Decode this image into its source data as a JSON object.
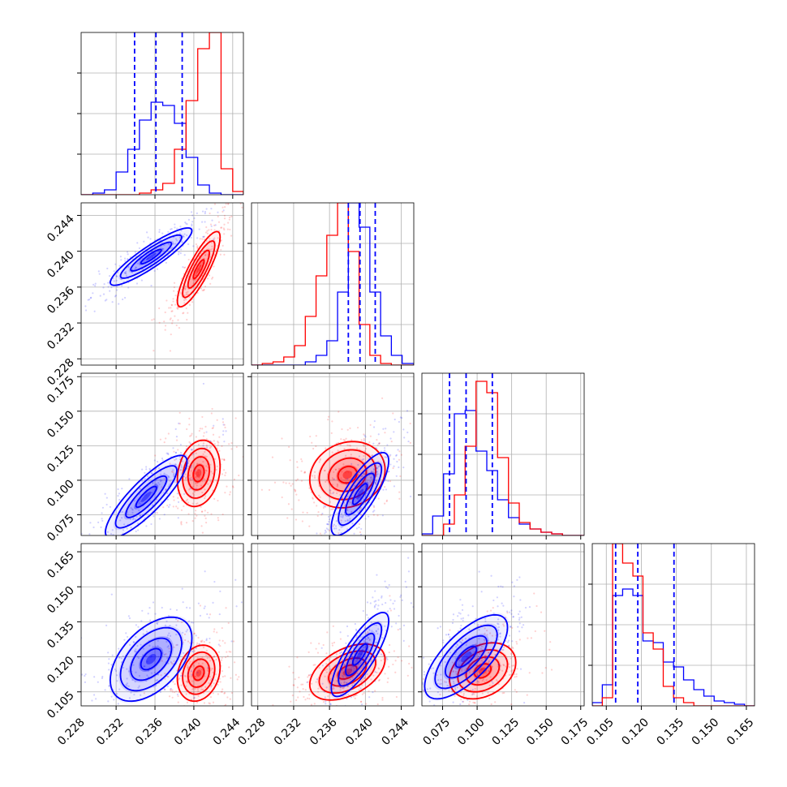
{
  "chart_data": {
    "type": "corner",
    "grid": true,
    "series": [
      {
        "color": "#0000ff"
      },
      {
        "color": "#ff0000"
      }
    ],
    "params": [
      {
        "range": [
          0.2284,
          0.2451
        ],
        "ticks": [
          0.228,
          0.232,
          0.236,
          0.24,
          0.244
        ],
        "tick_labels": [
          "0.228",
          "0.232",
          "0.236",
          "0.240",
          "0.244"
        ],
        "quantiles": [
          0.2339,
          0.2361,
          0.2388
        ],
        "hist": {
          "bins": [
            0.2284,
            0.2296,
            0.2308,
            0.232,
            0.2332,
            0.2344,
            0.2356,
            0.2368,
            0.238,
            0.2392,
            0.2404,
            0.2416,
            0.2428,
            0.244,
            0.2451
          ],
          "blue": [
            0.0,
            0.01,
            0.03,
            0.14,
            0.28,
            0.46,
            0.57,
            0.55,
            0.44,
            0.23,
            0.06,
            0.01,
            0.0,
            0.0
          ],
          "red": [
            0.0,
            0.0,
            0.0,
            0.0,
            0.0,
            0.01,
            0.03,
            0.07,
            0.28,
            0.58,
            0.9,
            1.0,
            0.16,
            0.02
          ]
        }
      },
      {
        "range": [
          0.2273,
          0.2454
        ],
        "ticks": [
          0.228,
          0.232,
          0.236,
          0.24,
          0.244
        ],
        "tick_labels": [
          "0.228",
          "0.232",
          "0.236",
          "0.240",
          "0.244"
        ],
        "quantiles": [
          0.2381,
          0.2394,
          0.2411
        ],
        "hist": {
          "bins": [
            0.2273,
            0.2285,
            0.2297,
            0.2309,
            0.2321,
            0.2333,
            0.2345,
            0.2357,
            0.2369,
            0.2381,
            0.2393,
            0.2405,
            0.2417,
            0.2429,
            0.2441,
            0.2454
          ],
          "blue": [
            0.0,
            0.0,
            0.0,
            0.0,
            0.0,
            0.02,
            0.06,
            0.15,
            0.45,
            1.0,
            0.85,
            0.45,
            0.18,
            0.06,
            0.01
          ],
          "red": [
            0.0,
            0.01,
            0.02,
            0.05,
            0.12,
            0.3,
            0.55,
            0.8,
            1.0,
            0.7,
            0.25,
            0.06,
            0.01,
            0.0,
            0.0
          ]
        }
      },
      {
        "range": [
          0.06,
          0.1775
        ],
        "ticks": [
          0.075,
          0.1,
          0.125,
          0.15,
          0.175
        ],
        "tick_labels": [
          "0.075",
          "0.100",
          "0.125",
          "0.150",
          "0.175"
        ],
        "quantiles": [
          0.08,
          0.092,
          0.111
        ],
        "hist": {
          "bins": [
            0.06,
            0.0678,
            0.0757,
            0.0835,
            0.0913,
            0.0992,
            0.107,
            0.1148,
            0.1227,
            0.1305,
            0.1383,
            0.1462,
            0.154,
            0.1618,
            0.1697,
            0.1775
          ],
          "blue": [
            0.01,
            0.12,
            0.38,
            0.75,
            0.77,
            0.52,
            0.4,
            0.22,
            0.11,
            0.07,
            0.04,
            0.02,
            0.01,
            0.0,
            0.0
          ],
          "red": [
            0.0,
            0.0,
            0.07,
            0.25,
            0.55,
            0.95,
            0.88,
            0.48,
            0.2,
            0.08,
            0.04,
            0.02,
            0.01,
            0.0,
            0.0
          ]
        }
      },
      {
        "range": [
          0.099,
          0.1685
        ],
        "ticks": [
          0.105,
          0.12,
          0.135,
          0.15,
          0.165
        ],
        "tick_labels": [
          "0.105",
          "0.120",
          "0.135",
          "0.150",
          "0.165"
        ],
        "quantiles": [
          0.109,
          0.1185,
          0.134
        ],
        "hist": {
          "bins": [
            0.099,
            0.1033,
            0.1077,
            0.112,
            0.1164,
            0.1207,
            0.1251,
            0.1294,
            0.1338,
            0.1381,
            0.1425,
            0.1468,
            0.1512,
            0.1555,
            0.1599,
            0.1642,
            0.1685
          ],
          "blue": [
            0.02,
            0.13,
            0.68,
            0.72,
            0.68,
            0.4,
            0.39,
            0.27,
            0.24,
            0.16,
            0.1,
            0.06,
            0.03,
            0.02,
            0.01,
            0.0
          ],
          "red": [
            0.0,
            0.05,
            1.0,
            0.88,
            0.8,
            0.45,
            0.35,
            0.12,
            0.05,
            0.02,
            0.0,
            0.0,
            0.0,
            0.0,
            0.0,
            0.0
          ]
        }
      }
    ],
    "pairs": [
      {
        "row": 1,
        "col": 0,
        "blue": {
          "mean": [
            0.2356,
            0.2394
          ],
          "sd": [
            0.0021,
            0.0016
          ],
          "rho": 0.9
        },
        "red": {
          "mean": [
            0.2405,
            0.238
          ],
          "sd": [
            0.0011,
            0.0021
          ],
          "rho": 0.85
        }
      },
      {
        "row": 2,
        "col": 0,
        "blue": {
          "mean": [
            0.2351,
            0.088
          ],
          "sd": [
            0.0021,
            0.015
          ],
          "rho": 0.85
        },
        "red": {
          "mean": [
            0.2405,
            0.105
          ],
          "sd": [
            0.0011,
            0.012
          ],
          "rho": 0.2
        }
      },
      {
        "row": 2,
        "col": 1,
        "blue": {
          "mean": [
            0.2394,
            0.09
          ],
          "sd": [
            0.0016,
            0.015
          ],
          "rho": 0.8
        },
        "red": {
          "mean": [
            0.238,
            0.104
          ],
          "sd": [
            0.0021,
            0.012
          ],
          "rho": 0.15
        }
      },
      {
        "row": 3,
        "col": 0,
        "blue": {
          "mean": [
            0.2356,
            0.119
          ],
          "sd": [
            0.0021,
            0.009
          ],
          "rho": 0.5
        },
        "red": {
          "mean": [
            0.2405,
            0.113
          ],
          "sd": [
            0.0011,
            0.006
          ],
          "rho": 0.2
        }
      },
      {
        "row": 3,
        "col": 1,
        "blue": {
          "mean": [
            0.2394,
            0.121
          ],
          "sd": [
            0.0016,
            0.009
          ],
          "rho": 0.8
        },
        "red": {
          "mean": [
            0.238,
            0.1135
          ],
          "sd": [
            0.0021,
            0.006
          ],
          "rho": 0.45
        }
      },
      {
        "row": 3,
        "col": 2,
        "blue": {
          "mean": [
            0.092,
            0.12
          ],
          "sd": [
            0.015,
            0.009
          ],
          "rho": 0.7
        },
        "red": {
          "mean": [
            0.104,
            0.114
          ],
          "sd": [
            0.012,
            0.006
          ],
          "rho": 0.3
        }
      }
    ]
  }
}
